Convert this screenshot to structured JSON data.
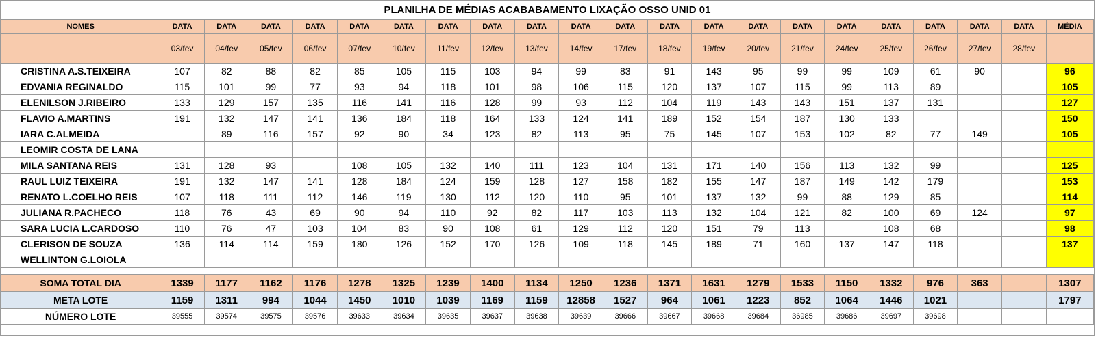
{
  "title": "PLANILHA DE MÉDIAS ACABABAMENTO LIXAÇÃO OSSO UNID 01",
  "header": {
    "names_label": "NOMES",
    "date_label": "DATA",
    "avg_label": "MÉDIA",
    "dates": [
      "03/fev",
      "04/fev",
      "05/fev",
      "06/fev",
      "07/fev",
      "10/fev",
      "11/fev",
      "12/fev",
      "13/fev",
      "14/fev",
      "17/fev",
      "18/fev",
      "19/fev",
      "20/fev",
      "21/fev",
      "24/fev",
      "25/fev",
      "26/fev",
      "27/fev",
      "28/fev"
    ]
  },
  "rows": [
    {
      "name": "CRISTINA A.S.TEIXEIRA",
      "values": [
        "107",
        "82",
        "88",
        "82",
        "85",
        "105",
        "115",
        "103",
        "94",
        "99",
        "83",
        "91",
        "143",
        "95",
        "99",
        "99",
        "109",
        "61",
        "90",
        ""
      ],
      "avg": "96"
    },
    {
      "name": "EDVANIA REGINALDO",
      "values": [
        "115",
        "101",
        "99",
        "77",
        "93",
        "94",
        "118",
        "101",
        "98",
        "106",
        "115",
        "120",
        "137",
        "107",
        "115",
        "99",
        "113",
        "89",
        "",
        ""
      ],
      "avg": "105"
    },
    {
      "name": "ELENILSON J.RIBEIRO",
      "values": [
        "133",
        "129",
        "157",
        "135",
        "116",
        "141",
        "116",
        "128",
        "99",
        "93",
        "112",
        "104",
        "119",
        "143",
        "143",
        "151",
        "137",
        "131",
        "",
        ""
      ],
      "avg": "127"
    },
    {
      "name": "FLAVIO A.MARTINS",
      "values": [
        "191",
        "132",
        "147",
        "141",
        "136",
        "184",
        "118",
        "164",
        "133",
        "124",
        "141",
        "189",
        "152",
        "154",
        "187",
        "130",
        "133",
        "",
        "",
        ""
      ],
      "avg": "150"
    },
    {
      "name": "IARA C.ALMEIDA",
      "values": [
        "",
        "89",
        "116",
        "157",
        "92",
        "90",
        "34",
        "123",
        "82",
        "113",
        "95",
        "75",
        "145",
        "107",
        "153",
        "102",
        "82",
        "77",
        "149",
        ""
      ],
      "avg": "105"
    },
    {
      "name": "LEOMIR COSTA DE LANA",
      "values": [
        "",
        "",
        "",
        "",
        "",
        "",
        "",
        "",
        "",
        "",
        "",
        "",
        "",
        "",
        "",
        "",
        "",
        "",
        "",
        ""
      ],
      "avg": ""
    },
    {
      "name": "MILA SANTANA REIS",
      "values": [
        "131",
        "128",
        "93",
        "",
        "108",
        "105",
        "132",
        "140",
        "111",
        "123",
        "104",
        "131",
        "171",
        "140",
        "156",
        "113",
        "132",
        "99",
        "",
        ""
      ],
      "avg": "125"
    },
    {
      "name": "RAUL LUIZ TEIXEIRA",
      "values": [
        "191",
        "132",
        "147",
        "141",
        "128",
        "184",
        "124",
        "159",
        "128",
        "127",
        "158",
        "182",
        "155",
        "147",
        "187",
        "149",
        "142",
        "179",
        "",
        ""
      ],
      "avg": "153"
    },
    {
      "name": "RENATO L.COELHO REIS",
      "values": [
        "107",
        "118",
        "111",
        "112",
        "146",
        "119",
        "130",
        "112",
        "120",
        "110",
        "95",
        "101",
        "137",
        "132",
        "99",
        "88",
        "129",
        "85",
        "",
        ""
      ],
      "avg": "114"
    },
    {
      "name": "JULIANA R.PACHECO",
      "values": [
        "118",
        "76",
        "43",
        "69",
        "90",
        "94",
        "110",
        "92",
        "82",
        "117",
        "103",
        "113",
        "132",
        "104",
        "121",
        "82",
        "100",
        "69",
        "124",
        ""
      ],
      "avg": "97"
    },
    {
      "name": "SARA LUCIA L.CARDOSO",
      "values": [
        "110",
        "76",
        "47",
        "103",
        "104",
        "83",
        "90",
        "108",
        "61",
        "129",
        "112",
        "120",
        "151",
        "79",
        "113",
        "",
        "108",
        "68",
        "",
        ""
      ],
      "avg": "98"
    },
    {
      "name": "CLERISON DE SOUZA",
      "values": [
        "136",
        "114",
        "114",
        "159",
        "180",
        "126",
        "152",
        "170",
        "126",
        "109",
        "118",
        "145",
        "189",
        "71",
        "160",
        "137",
        "147",
        "118",
        "",
        ""
      ],
      "avg": "137"
    },
    {
      "name": "WELLINTON G.LOIOLA",
      "values": [
        "",
        "",
        "",
        "",
        "",
        "",
        "",
        "",
        "",
        "",
        "",
        "",
        "",
        "",
        "",
        "",
        "",
        "",
        "",
        ""
      ],
      "avg": ""
    }
  ],
  "soma": {
    "label": "SOMA TOTAL DIA",
    "values": [
      "1339",
      "1177",
      "1162",
      "1176",
      "1278",
      "1325",
      "1239",
      "1400",
      "1134",
      "1250",
      "1236",
      "1371",
      "1631",
      "1279",
      "1533",
      "1150",
      "1332",
      "976",
      "363",
      ""
    ],
    "avg": "1307"
  },
  "meta": {
    "label": "META LOTE",
    "values": [
      "1159",
      "1311",
      "994",
      "1044",
      "1450",
      "1010",
      "1039",
      "1169",
      "1159",
      "12858",
      "1527",
      "964",
      "1061",
      "1223",
      "852",
      "1064",
      "1446",
      "1021",
      "",
      ""
    ],
    "avg": "1797"
  },
  "lote": {
    "label": "NÚMERO LOTE",
    "values": [
      "39555",
      "39574",
      "39575",
      "39576",
      "39633",
      "39634",
      "39635",
      "39637",
      "39638",
      "39639",
      "39666",
      "39667",
      "39668",
      "39684",
      "36985",
      "39686",
      "39697",
      "39698",
      "",
      ""
    ],
    "avg": ""
  },
  "colors": {
    "header_bg": "#f8cbad",
    "average_bg": "#ffff00",
    "meta_bg": "#dce6f1",
    "border": "#9a9a9a"
  }
}
